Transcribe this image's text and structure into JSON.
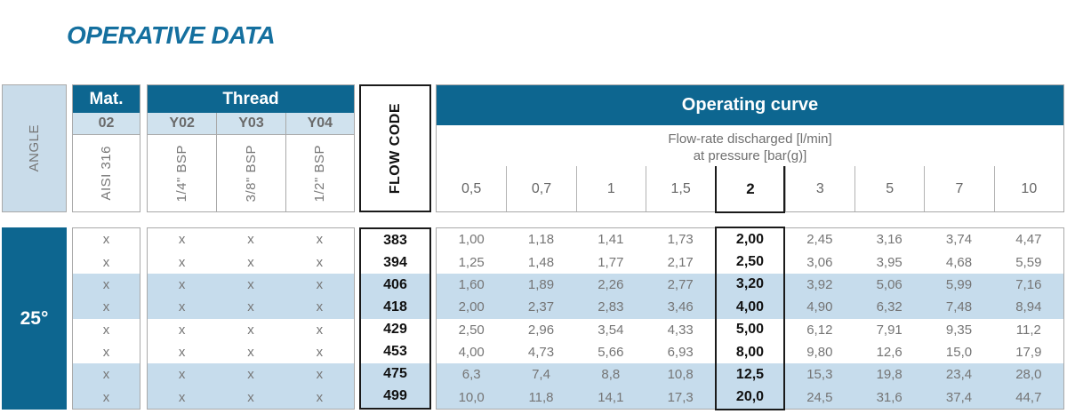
{
  "title": "OPERATIVE DATA",
  "colors": {
    "teal": "#0d6690",
    "title_teal": "#15709f",
    "light_blue_header": "#c9dcea",
    "light_blue_subrow": "#d0e2ee",
    "stripe_blue": "#c6dcec"
  },
  "table": {
    "angle": {
      "header": "ANGLE",
      "value": "25°"
    },
    "mat": {
      "header": "Mat.",
      "code": "02",
      "label": "AISI 316"
    },
    "thread": {
      "header": "Thread",
      "columns": [
        {
          "code": "Y02",
          "label": "1/4\" BSP"
        },
        {
          "code": "Y03",
          "label": "3/8\" BSP"
        },
        {
          "code": "Y04",
          "label": "1/2\" BSP"
        }
      ]
    },
    "flow_code": {
      "header": "FLOW CODE"
    },
    "operating_curve": {
      "header": "Operating curve",
      "subtitle_line1": "Flow-rate discharged [l/min]",
      "subtitle_line2": "at pressure [bar(g)]",
      "pressures": [
        "0,5",
        "0,7",
        "1",
        "1,5",
        "2",
        "3",
        "5",
        "7",
        "10"
      ],
      "highlighted_pressure_index": 4
    },
    "rows": [
      {
        "mat": "x",
        "threads": [
          "x",
          "x",
          "x"
        ],
        "flow_code": "383",
        "values": [
          "1,00",
          "1,18",
          "1,41",
          "1,73",
          "2,00",
          "2,45",
          "3,16",
          "3,74",
          "4,47"
        ]
      },
      {
        "mat": "x",
        "threads": [
          "x",
          "x",
          "x"
        ],
        "flow_code": "394",
        "values": [
          "1,25",
          "1,48",
          "1,77",
          "2,17",
          "2,50",
          "3,06",
          "3,95",
          "4,68",
          "5,59"
        ]
      },
      {
        "mat": "x",
        "threads": [
          "x",
          "x",
          "x"
        ],
        "flow_code": "406",
        "values": [
          "1,60",
          "1,89",
          "2,26",
          "2,77",
          "3,20",
          "3,92",
          "5,06",
          "5,99",
          "7,16"
        ]
      },
      {
        "mat": "x",
        "threads": [
          "x",
          "x",
          "x"
        ],
        "flow_code": "418",
        "values": [
          "2,00",
          "2,37",
          "2,83",
          "3,46",
          "4,00",
          "4,90",
          "6,32",
          "7,48",
          "8,94"
        ]
      },
      {
        "mat": "x",
        "threads": [
          "x",
          "x",
          "x"
        ],
        "flow_code": "429",
        "values": [
          "2,50",
          "2,96",
          "3,54",
          "4,33",
          "5,00",
          "6,12",
          "7,91",
          "9,35",
          "11,2"
        ]
      },
      {
        "mat": "x",
        "threads": [
          "x",
          "x",
          "x"
        ],
        "flow_code": "453",
        "values": [
          "4,00",
          "4,73",
          "5,66",
          "6,93",
          "8,00",
          "9,80",
          "12,6",
          "15,0",
          "17,9"
        ]
      },
      {
        "mat": "x",
        "threads": [
          "x",
          "x",
          "x"
        ],
        "flow_code": "475",
        "values": [
          "6,3",
          "7,4",
          "8,8",
          "10,8",
          "12,5",
          "15,3",
          "19,8",
          "23,4",
          "28,0"
        ]
      },
      {
        "mat": "x",
        "threads": [
          "x",
          "x",
          "x"
        ],
        "flow_code": "499",
        "values": [
          "10,0",
          "11,8",
          "14,1",
          "17,3",
          "20,0",
          "24,5",
          "31,6",
          "37,4",
          "44,7"
        ]
      }
    ]
  }
}
